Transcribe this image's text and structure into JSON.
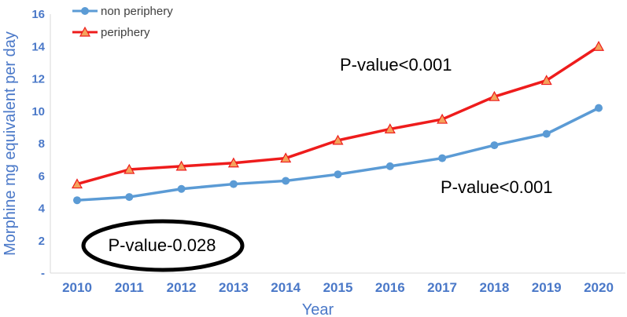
{
  "chart_data": {
    "type": "line",
    "xlabel": "Year",
    "ylabel": "Morphine mg equivalent per day",
    "x": [
      "2010",
      "2011",
      "2012",
      "2013",
      "2014",
      "2015",
      "2016",
      "2017",
      "2018",
      "2019",
      "2020"
    ],
    "ylim": [
      0,
      16
    ],
    "yticks": [
      "-",
      "2",
      "4",
      "6",
      "8",
      "10",
      "12",
      "14",
      "16"
    ],
    "grid": false,
    "legend_position": "top-left",
    "series": [
      {
        "name": "non periphery",
        "color": "#5b9bd5",
        "marker": "circle",
        "values": [
          4.5,
          4.7,
          5.2,
          5.5,
          5.7,
          6.1,
          6.6,
          7.1,
          7.9,
          8.6,
          10.2
        ]
      },
      {
        "name": "periphery",
        "color": "#ee1c1c",
        "marker": "triangle",
        "values": [
          5.5,
          6.4,
          6.6,
          6.8,
          7.1,
          8.2,
          8.9,
          9.5,
          10.9,
          11.9,
          14.0
        ]
      }
    ],
    "annotations": [
      {
        "text": "P-value<0.001",
        "anchor": "periphery-trend"
      },
      {
        "text": "P-value<0.001",
        "anchor": "non-periphery-trend"
      },
      {
        "text": "P-value-0.028",
        "anchor": "bottom-left",
        "circled": true
      }
    ]
  }
}
